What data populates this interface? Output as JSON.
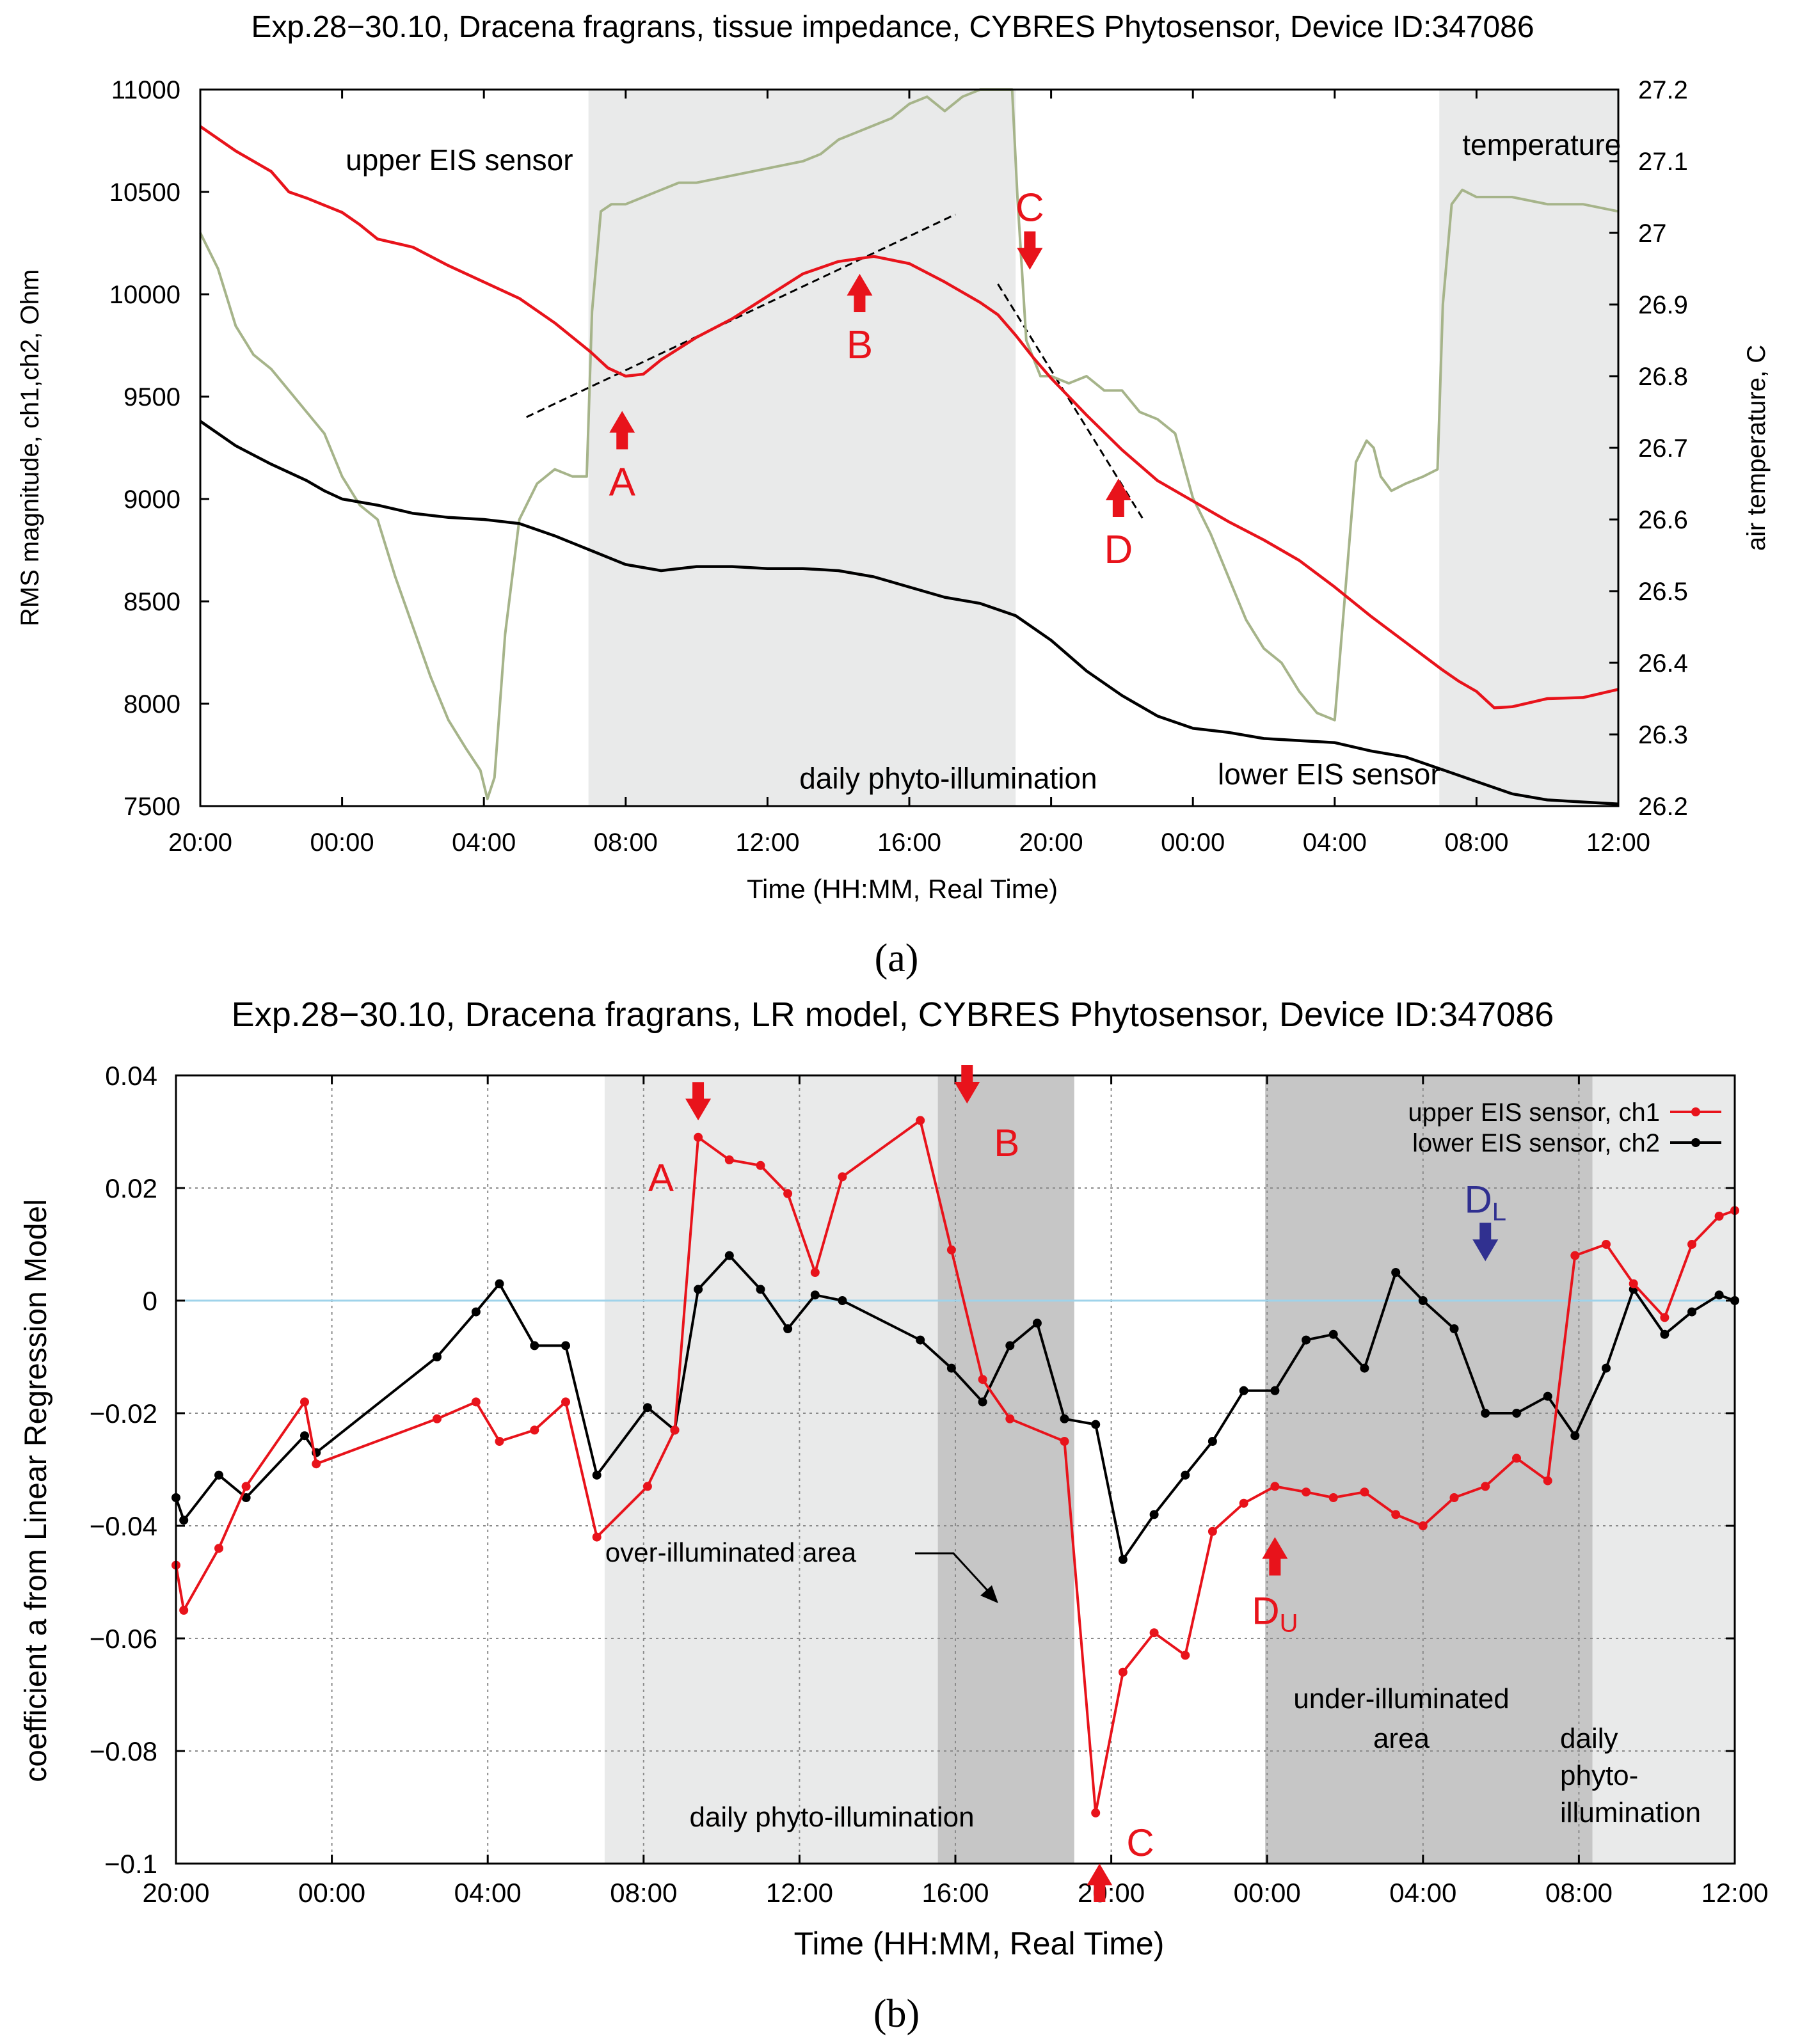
{
  "colors": {
    "upper": "#e8131b",
    "lower": "#000000",
    "temperature": "#a6b48a",
    "illum_light": "#e9eaea",
    "illum_dark": "#c6c6c6",
    "zero_line": "#9fd3ea",
    "annotation_blue": "#303090"
  },
  "chart_data": [
    {
      "id": "a",
      "type": "line",
      "panel_label": "(a)",
      "title": "Exp.28−30.10,  Dracena fragrans, tissue impedance, CYBRES Phytosensor, Device ID:347086",
      "xlabel": "Time (HH:MM, Real Time)",
      "ylabel": "RMS magnitude, ch1,ch2, Ohm",
      "y2label": "air temperature, C",
      "x_unit": "hours since 20:00 (day 1)",
      "xlim": [
        0,
        40
      ],
      "x_ticks": [
        0,
        4,
        8,
        12,
        16,
        20,
        24,
        28,
        32,
        36,
        40
      ],
      "x_tick_labels": [
        "20:00",
        "00:00",
        "04:00",
        "08:00",
        "12:00",
        "16:00",
        "20:00",
        "00:00",
        "04:00",
        "08:00",
        "12:00"
      ],
      "ylim": [
        7500,
        11000
      ],
      "y_ticks": [
        7500,
        8000,
        8500,
        9000,
        9500,
        10000,
        10500,
        11000
      ],
      "y_tick_labels": [
        "7500",
        "8000",
        "8500",
        "9000",
        "9500",
        "10000",
        "10500",
        "11000"
      ],
      "y2lim": [
        26.2,
        27.2
      ],
      "y2_ticks": [
        26.2,
        26.3,
        26.4,
        26.5,
        26.6,
        26.7,
        26.8,
        26.9,
        27.0,
        27.1,
        27.2
      ],
      "y2_tick_labels": [
        "26.2",
        "26.3",
        "26.4",
        "26.5",
        "26.6",
        "26.7",
        "26.8",
        "26.9",
        "27",
        "27.1",
        "27.2"
      ],
      "shaded_regions": [
        {
          "x": [
            10.95,
            23
          ],
          "label": "daily phyto-illumination"
        },
        {
          "x": [
            34.95,
            40
          ],
          "label": ""
        }
      ],
      "series": [
        {
          "name": "upper EIS sensor",
          "axis": "left",
          "color": "#e8131b",
          "x": [
            0,
            1,
            2,
            2.5,
            3,
            4,
            4.5,
            5,
            6,
            7,
            8,
            9,
            10,
            11,
            11.5,
            12,
            12.5,
            13,
            14,
            15,
            16,
            17,
            18,
            19,
            20,
            21,
            21.5,
            22,
            22.5,
            23,
            23.5,
            24,
            25,
            26,
            27,
            28,
            29,
            30,
            31,
            32,
            33,
            34,
            35,
            35.5,
            36,
            36.5,
            37,
            38,
            39,
            40
          ],
          "values": [
            10820,
            10700,
            10600,
            10500,
            10470,
            10400,
            10340,
            10270,
            10230,
            10140,
            10060,
            9980,
            9860,
            9720,
            9640,
            9600,
            9610,
            9680,
            9790,
            9880,
            9990,
            10100,
            10160,
            10185,
            10150,
            10060,
            10010,
            9960,
            9900,
            9800,
            9690,
            9590,
            9410,
            9240,
            9090,
            8990,
            8890,
            8800,
            8700,
            8570,
            8430,
            8300,
            8170,
            8110,
            8060,
            7980,
            7985,
            8025,
            8030,
            8070
          ]
        },
        {
          "name": "lower EIS sensor",
          "axis": "left",
          "color": "#000000",
          "x": [
            0,
            1,
            2,
            3,
            3.5,
            4,
            5,
            6,
            7,
            8,
            9,
            10,
            11,
            12,
            13,
            14,
            15,
            16,
            17,
            18,
            19,
            20,
            21,
            22,
            23,
            24,
            25,
            26,
            27,
            28,
            29,
            30,
            31,
            32,
            33,
            34,
            35,
            36,
            37,
            38,
            39,
            40
          ],
          "values": [
            9380,
            9260,
            9170,
            9090,
            9040,
            9000,
            8970,
            8930,
            8910,
            8900,
            8880,
            8820,
            8750,
            8680,
            8650,
            8670,
            8670,
            8660,
            8660,
            8650,
            8620,
            8570,
            8520,
            8490,
            8430,
            8310,
            8160,
            8040,
            7940,
            7880,
            7860,
            7830,
            7820,
            7810,
            7770,
            7740,
            7680,
            7620,
            7560,
            7530,
            7520,
            7510
          ]
        },
        {
          "name": "temperature",
          "axis": "right",
          "color": "#a6b48a",
          "x": [
            0,
            0.5,
            1,
            1.5,
            2,
            2.5,
            3,
            3.5,
            4,
            4.5,
            5,
            5.5,
            6,
            6.5,
            7,
            7.5,
            7.9,
            8.1,
            8.3,
            8.6,
            9,
            9.5,
            10,
            10.5,
            10.9,
            11.05,
            11.3,
            11.6,
            12,
            12.5,
            13,
            13.5,
            14,
            15,
            16,
            17,
            17.5,
            18,
            18.5,
            19,
            19.5,
            20,
            20.5,
            21,
            21.5,
            22,
            22.5,
            22.9,
            23.05,
            23.3,
            23.7,
            24,
            24.5,
            25,
            25.5,
            26,
            26.5,
            27,
            27.5,
            28,
            28.5,
            29,
            29.5,
            30,
            30.5,
            31,
            31.5,
            32,
            32.3,
            32.6,
            32.9,
            33.1,
            33.3,
            33.6,
            34,
            34.5,
            34.9,
            35.05,
            35.3,
            35.6,
            36,
            37,
            38,
            39,
            40
          ],
          "values": [
            27.0,
            26.95,
            26.87,
            26.83,
            26.81,
            26.78,
            26.75,
            26.72,
            26.66,
            26.62,
            26.6,
            26.52,
            26.45,
            26.38,
            26.32,
            26.28,
            26.25,
            26.21,
            26.24,
            26.44,
            26.6,
            26.65,
            26.67,
            26.66,
            26.66,
            26.89,
            27.03,
            27.04,
            27.04,
            27.05,
            27.06,
            27.07,
            27.07,
            27.08,
            27.09,
            27.1,
            27.11,
            27.13,
            27.14,
            27.15,
            27.16,
            27.18,
            27.19,
            27.17,
            27.19,
            27.2,
            27.2,
            27.2,
            27.05,
            26.85,
            26.8,
            26.8,
            26.79,
            26.8,
            26.78,
            26.78,
            26.75,
            26.74,
            26.72,
            26.63,
            26.58,
            26.52,
            26.46,
            26.42,
            26.4,
            26.36,
            26.33,
            26.32,
            26.5,
            26.68,
            26.71,
            26.7,
            26.66,
            26.64,
            26.65,
            26.66,
            26.67,
            26.9,
            27.04,
            27.06,
            27.05,
            27.05,
            27.04,
            27.04,
            27.03
          ]
        }
      ],
      "guide_lines": [
        {
          "x": [
            9.2,
            21.3
          ],
          "y": [
            9400,
            10390
          ]
        },
        {
          "x": [
            22.5,
            26.6
          ],
          "y": [
            10050,
            8900
          ]
        }
      ],
      "annotations": [
        {
          "label": "A",
          "x": 11.9,
          "y": 9430,
          "dir": "up"
        },
        {
          "label": "B",
          "x": 18.6,
          "y": 10100,
          "dir": "up"
        },
        {
          "label": "C",
          "x": 23.4,
          "y": 10120,
          "dir": "down"
        },
        {
          "label": "D",
          "x": 25.9,
          "y": 9100,
          "dir": "up"
        }
      ],
      "series_labels": [
        {
          "text": "upper EIS sensor",
          "x": 4.1,
          "y": 10650
        },
        {
          "text": "temperature",
          "x": 35.6,
          "y": 10725
        },
        {
          "text": "daily phyto-illumination",
          "x": 16.9,
          "y": 7630
        },
        {
          "text": "lower EIS sensor",
          "x": 28.7,
          "y": 7650
        }
      ]
    },
    {
      "id": "b",
      "type": "line",
      "panel_label": "(b)",
      "title": "Exp.28−30.10,  Dracena fragrans, LR model, CYBRES Phytosensor, Device ID:347086",
      "xlabel": "Time (HH:MM, Real Time)",
      "ylabel": "coefficient a from Linear Regression Model",
      "x_unit": "hours since 20:00 (day 1)",
      "xlim": [
        0,
        40
      ],
      "x_ticks": [
        0,
        4,
        8,
        12,
        16,
        20,
        24,
        28,
        32,
        36,
        40
      ],
      "x_tick_labels": [
        "20:00",
        "00:00",
        "04:00",
        "08:00",
        "12:00",
        "16:00",
        "20:00",
        "00:00",
        "04:00",
        "08:00",
        "12:00"
      ],
      "ylim": [
        -0.1,
        0.04
      ],
      "y_ticks": [
        -0.1,
        -0.08,
        -0.06,
        -0.04,
        -0.02,
        0,
        0.02,
        0.04
      ],
      "y_tick_labels": [
        "−0.1",
        "−0.08",
        "−0.06",
        "−0.04",
        "−0.02",
        "0",
        "0.02",
        "0.04"
      ],
      "shaded_regions": [
        {
          "x": [
            11.0,
            19.55
          ],
          "shade": "light"
        },
        {
          "x": [
            19.55,
            23.05
          ],
          "shade": "dark"
        },
        {
          "x": [
            27.95,
            36.35
          ],
          "shade": "dark"
        },
        {
          "x": [
            36.35,
            40
          ],
          "shade": "light"
        }
      ],
      "series": [
        {
          "name": "upper EIS sensor, ch1",
          "color": "#e8131b",
          "x": [
            0,
            0.2,
            1.1,
            1.8,
            3.3,
            3.6,
            6.7,
            7.7,
            8.3,
            9.2,
            10.0,
            10.8,
            12.1,
            12.8,
            13.4,
            14.2,
            15.0,
            15.7,
            16.4,
            17.1,
            19.1,
            19.9,
            20.7,
            21.4,
            22.8,
            23.6,
            24.3,
            25.1,
            25.9,
            26.6,
            27.4,
            28.2,
            29.0,
            29.7,
            30.5,
            31.3,
            32.0,
            32.8,
            33.6,
            34.4,
            35.2,
            35.9,
            36.7,
            37.4,
            38.2,
            38.9,
            39.6,
            40
          ],
          "values": [
            -0.047,
            -0.055,
            -0.044,
            -0.033,
            -0.018,
            -0.029,
            -0.021,
            -0.018,
            -0.025,
            -0.023,
            -0.018,
            -0.042,
            -0.033,
            -0.023,
            0.029,
            0.025,
            0.024,
            0.019,
            0.005,
            0.022,
            0.032,
            0.009,
            -0.014,
            -0.021,
            -0.025,
            -0.091,
            -0.066,
            -0.059,
            -0.063,
            -0.041,
            -0.036,
            -0.033,
            -0.034,
            -0.035,
            -0.034,
            -0.038,
            -0.04,
            -0.035,
            -0.033,
            -0.028,
            -0.032,
            0.008,
            0.01,
            0.003,
            -0.003,
            0.01,
            0.015,
            0.016
          ]
        },
        {
          "name": "lower EIS sensor, ch2",
          "color": "#000000",
          "x": [
            0,
            0.2,
            1.1,
            1.8,
            3.3,
            3.6,
            6.7,
            7.7,
            8.3,
            9.2,
            10.0,
            10.8,
            12.1,
            12.8,
            13.4,
            14.2,
            15.0,
            15.7,
            16.4,
            17.1,
            19.1,
            19.9,
            20.7,
            21.4,
            22.1,
            22.8,
            23.6,
            24.3,
            25.1,
            25.9,
            26.6,
            27.4,
            28.2,
            29.0,
            29.7,
            30.5,
            31.3,
            32.0,
            32.8,
            33.6,
            34.4,
            35.2,
            35.9,
            36.7,
            37.4,
            38.2,
            38.9,
            39.6,
            40
          ],
          "values": [
            -0.035,
            -0.039,
            -0.031,
            -0.035,
            -0.024,
            -0.027,
            -0.01,
            -0.002,
            0.003,
            -0.008,
            -0.008,
            -0.031,
            -0.019,
            -0.023,
            0.002,
            0.008,
            0.002,
            -0.005,
            0.001,
            0.0,
            -0.007,
            -0.012,
            -0.018,
            -0.008,
            -0.004,
            -0.021,
            -0.022,
            -0.046,
            -0.038,
            -0.031,
            -0.025,
            -0.016,
            -0.016,
            -0.007,
            -0.006,
            -0.012,
            0.005,
            0.0,
            -0.005,
            -0.02,
            -0.02,
            -0.017,
            -0.024,
            -0.012,
            0.002,
            -0.006,
            -0.002,
            0.001,
            0.0
          ]
        }
      ],
      "legend": {
        "position": "top-right",
        "entries": [
          "upper EIS sensor, ch1",
          "lower EIS sensor, ch2"
        ]
      },
      "annotations": [
        {
          "label": "A",
          "x": 13.4,
          "y": 0.032,
          "dir": "down",
          "color": "#e8131b"
        },
        {
          "label": "B",
          "x": 20.3,
          "y": 0.035,
          "dir": "down",
          "color": "#e8131b"
        },
        {
          "label": "C",
          "x": 23.7,
          "y": -0.1,
          "dir": "up",
          "color": "#e8131b"
        },
        {
          "label": "D",
          "sub": "U",
          "x": 28.2,
          "y": -0.042,
          "dir": "up",
          "color": "#e8131b"
        },
        {
          "label": "D",
          "sub": "L",
          "x": 33.6,
          "y": 0.007,
          "dir": "down",
          "color": "#303090"
        }
      ],
      "text_labels": {
        "over": "over-illuminated area",
        "under_1": "under-illuminated",
        "under_2": "area",
        "daily": "daily phyto-illumination",
        "daily_r1": "daily",
        "daily_r2": "phyto-",
        "daily_r3": "illumination"
      }
    }
  ]
}
